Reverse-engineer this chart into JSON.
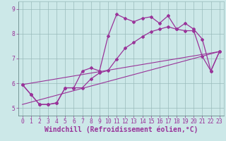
{
  "xlabel": "Windchill (Refroidissement éolien,°C)",
  "background_color": "#cce8e8",
  "line_color": "#993399",
  "grid_color": "#99bbbb",
  "xlim": [
    -0.5,
    23.5
  ],
  "ylim": [
    4.7,
    9.3
  ],
  "yticks": [
    5,
    6,
    7,
    8,
    9
  ],
  "xticks": [
    0,
    1,
    2,
    3,
    4,
    5,
    6,
    7,
    8,
    9,
    10,
    11,
    12,
    13,
    14,
    15,
    16,
    17,
    18,
    19,
    20,
    21,
    22,
    23
  ],
  "series1_x": [
    0,
    1,
    2,
    3,
    4,
    5,
    6,
    7,
    8,
    9,
    10,
    11,
    12,
    13,
    14,
    15,
    16,
    17,
    18,
    19,
    20,
    21,
    22,
    23
  ],
  "series1_y": [
    5.95,
    5.55,
    5.15,
    5.15,
    5.2,
    5.82,
    5.82,
    6.5,
    6.62,
    6.5,
    7.9,
    8.78,
    8.62,
    8.48,
    8.62,
    8.68,
    8.42,
    8.72,
    8.18,
    8.42,
    8.18,
    7.78,
    6.5,
    7.28
  ],
  "series2_x": [
    0,
    1,
    2,
    3,
    4,
    5,
    6,
    7,
    8,
    9,
    10,
    11,
    12,
    13,
    14,
    15,
    16,
    17,
    18,
    19,
    20,
    21,
    22,
    23
  ],
  "series2_y": [
    5.95,
    5.55,
    5.15,
    5.15,
    5.22,
    5.82,
    5.82,
    5.82,
    6.18,
    6.42,
    6.52,
    6.98,
    7.42,
    7.65,
    7.88,
    8.08,
    8.18,
    8.28,
    8.18,
    8.12,
    8.12,
    7.08,
    6.5,
    7.28
  ],
  "series3_x": [
    0,
    23
  ],
  "series3_y": [
    5.95,
    7.28
  ],
  "series4_x": [
    0,
    23
  ],
  "series4_y": [
    5.15,
    7.28
  ],
  "tick_fontsize": 5.8,
  "xlabel_fontsize": 7.0
}
